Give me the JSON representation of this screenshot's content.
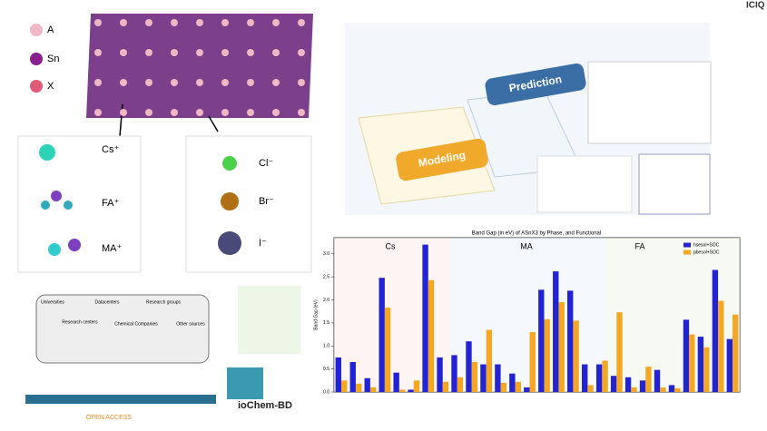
{
  "logo": "ICIQ",
  "structure_legend": [
    "A",
    "Sn",
    "X"
  ],
  "cations": [
    "Cs⁺",
    "FA⁺",
    "MA⁺"
  ],
  "anions": [
    "Cl⁻",
    "Br⁻",
    "I⁻"
  ],
  "workflow": {
    "steps": [
      "Modeling",
      "Prediction"
    ]
  },
  "database": {
    "sources": [
      "Universities",
      "Research centers",
      "Datacenters",
      "Chemical Companies",
      "Research groups",
      "Other sources"
    ],
    "access": "OPEN ACCESS",
    "brand": "ioChem-BD"
  },
  "chart_data": {
    "type": "bar",
    "title": "Band Gap (in eV) of ASnX3 by Phase, and Functional",
    "y_label": "Band Gap (eV)",
    "group_labels": [
      "Cs",
      "MA",
      "FA"
    ],
    "categories": [
      null,
      null,
      null,
      null,
      null,
      null,
      null,
      null,
      null,
      null,
      null,
      null,
      null,
      null,
      null,
      null,
      null,
      null,
      null,
      null,
      null,
      null,
      null,
      null,
      null,
      null,
      null,
      null
    ],
    "series": [
      {
        "name": "hsesol+SOC",
        "color": "#2323d6",
        "values": [
          0.75,
          0.65,
          0.3,
          2.48,
          0.42,
          0.05,
          3.2,
          0.75,
          0.8,
          1.1,
          0.6,
          0.6,
          0.4,
          0.1,
          2.22,
          2.62,
          2.2,
          0.6,
          0.6,
          0.35,
          0.32,
          0.25,
          0.48,
          0.15,
          1.57,
          1.2,
          2.65,
          1.15
        ]
      },
      {
        "name": "pbesol+SOC",
        "color": "#f5a623",
        "values": [
          0.25,
          0.18,
          0.1,
          1.83,
          0.05,
          0.25,
          2.43,
          0.22,
          0.32,
          0.65,
          1.35,
          0.2,
          0.22,
          1.3,
          1.58,
          1.95,
          1.55,
          0.15,
          0.68,
          1.73,
          0.1,
          0.55,
          0.1,
          0.08,
          1.25,
          0.97,
          1.98,
          1.68
        ]
      }
    ],
    "ylim": [
      0,
      3.35
    ],
    "yticks": [
      {
        "value": 0,
        "label": "0.0"
      },
      {
        "value": 0.5,
        "label": "0.5"
      },
      {
        "value": 1,
        "label": "1.0"
      },
      {
        "value": 1.5,
        "label": "1.5"
      },
      {
        "value": 2,
        "label": "2.0"
      },
      {
        "value": 2.5,
        "label": "2.5"
      },
      {
        "value": 3,
        "label": "3.0"
      }
    ],
    "legend": "upper right"
  }
}
